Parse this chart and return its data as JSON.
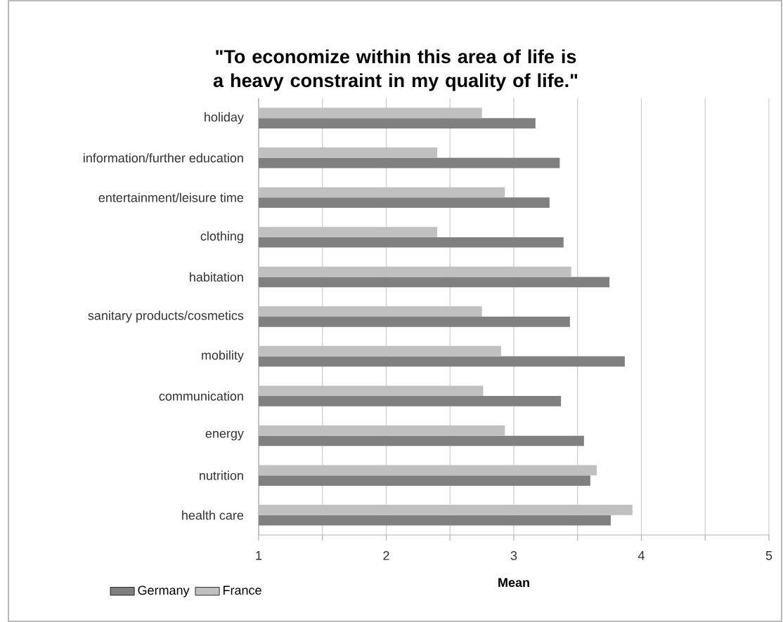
{
  "chart_data": {
    "type": "bar",
    "orientation": "horizontal",
    "title": "\"To economize within this area of life is a heavy constraint in my quality of life.\"",
    "xlabel": "Mean",
    "categories": [
      "holiday",
      "information/further education",
      "entertainment/leisure time",
      "clothing",
      "habitation",
      "sanitary products/cosmetics",
      "mobility",
      "communication",
      "energy",
      "nutrition",
      "health care"
    ],
    "series": [
      {
        "name": "Germany",
        "color": "#808080",
        "values": [
          3.17,
          3.36,
          3.28,
          3.39,
          3.75,
          3.44,
          3.87,
          3.37,
          3.55,
          3.6,
          3.76
        ]
      },
      {
        "name": "France",
        "color": "#c0c0c0",
        "values": [
          2.75,
          2.4,
          2.93,
          2.4,
          3.45,
          2.75,
          2.9,
          2.76,
          2.93,
          3.65,
          3.93
        ]
      }
    ],
    "xlim": [
      1,
      5
    ],
    "xticks": [
      1,
      {
        "value": 1.5,
        "label": null
      },
      2,
      {
        "value": 2.5,
        "label": null
      },
      3,
      {
        "value": 3.5,
        "label": null
      },
      4,
      {
        "value": 4.5,
        "label": null
      },
      5
    ],
    "grid": "x",
    "legend": "bottom left"
  }
}
